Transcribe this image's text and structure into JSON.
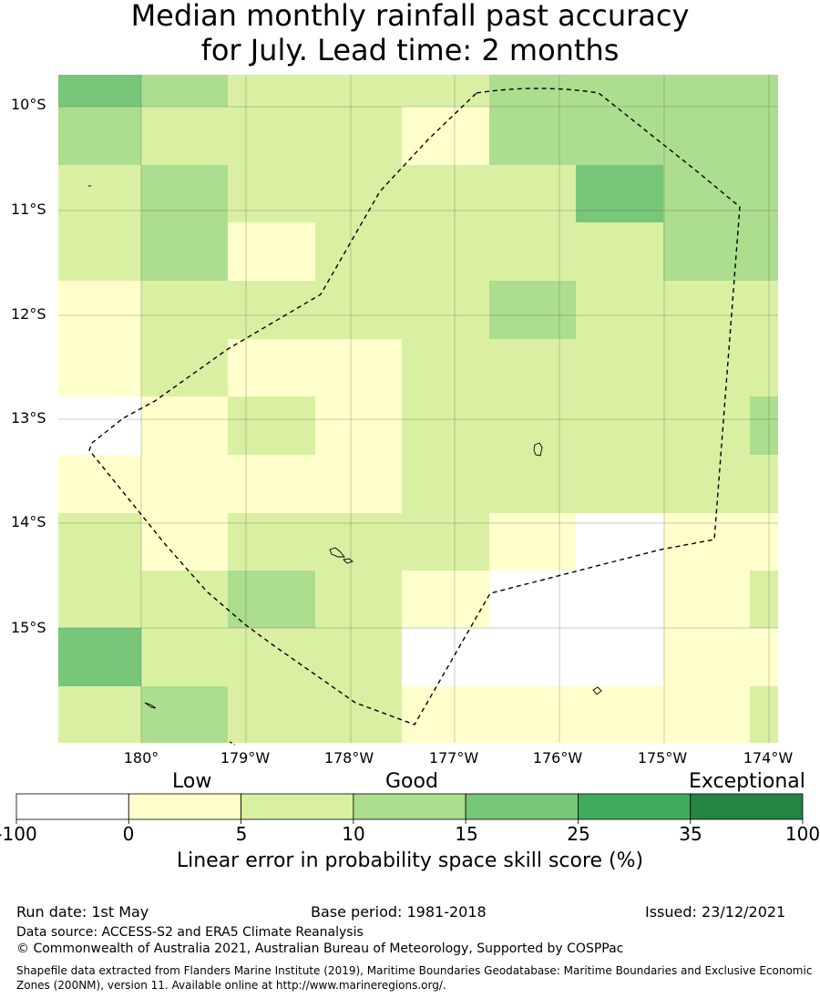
{
  "title": {
    "line1": "Median monthly rainfall past accuracy",
    "line2": "for July. Lead time: 2 months"
  },
  "map": {
    "lat_labels": [
      "10°S",
      "11°S",
      "12°S",
      "13°S",
      "14°S",
      "15°S"
    ],
    "lon_labels": [
      "180°",
      "179°W",
      "178°W",
      "177°W",
      "176°W",
      "175°W",
      "174°W"
    ],
    "class_colors": [
      "#ffffff",
      "#ffffcc",
      "#d9f0a3",
      "#addd8e",
      "#78c679",
      "#41ab5d",
      "#238443"
    ],
    "grid": [
      [
        4,
        3,
        2,
        2,
        2,
        3,
        3,
        3,
        3
      ],
      [
        3,
        2,
        2,
        2,
        1,
        3,
        3,
        3,
        3
      ],
      [
        2,
        3,
        2,
        2,
        2,
        2,
        4,
        3,
        3
      ],
      [
        2,
        3,
        1,
        2,
        2,
        2,
        2,
        3,
        3
      ],
      [
        1,
        2,
        2,
        2,
        2,
        3,
        2,
        2,
        2
      ],
      [
        1,
        2,
        1,
        1,
        2,
        2,
        2,
        2,
        2
      ],
      [
        0,
        1,
        2,
        1,
        2,
        2,
        2,
        2,
        3
      ],
      [
        1,
        1,
        1,
        1,
        2,
        2,
        2,
        2,
        2
      ],
      [
        2,
        1,
        2,
        2,
        2,
        1,
        0,
        1,
        1
      ],
      [
        2,
        2,
        3,
        2,
        1,
        0,
        0,
        1,
        2
      ],
      [
        4,
        2,
        2,
        2,
        0,
        0,
        0,
        1,
        1
      ],
      [
        2,
        3,
        2,
        2,
        1,
        1,
        1,
        1,
        2
      ]
    ]
  },
  "colorbar": {
    "category_labels": [
      "Low",
      "Good",
      "Exceptional"
    ],
    "tick_labels": [
      "-100",
      "0",
      "5",
      "10",
      "15",
      "25",
      "35",
      "100"
    ],
    "title": "Linear error in probability space skill score (%)"
  },
  "footer": {
    "run_date": "Run date: 1st May",
    "base_period": "Base period: 1981-2018",
    "issued": "Issued: 23/12/2021",
    "data_source": "Data source: ACCESS-S2 and ERA5 Climate Reanalysis",
    "copyright": "© Commonwealth of Australia 2021, Australian Bureau of Meteorology, Supported by COSPPac",
    "shapefile": "Shapefile data extracted from Flanders Marine Institute (2019), Maritime Boundaries Geodatabase: Maritime Boundaries and Exclusive Economic Zones (200NM), version 11. Available online at http://www.marineregions.org/."
  }
}
